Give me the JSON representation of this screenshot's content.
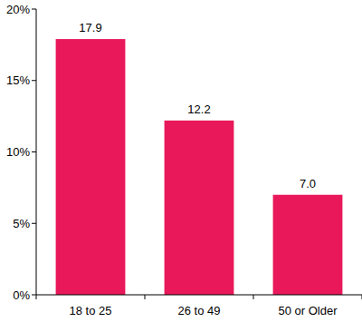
{
  "chart_data": {
    "type": "bar",
    "categories": [
      "18 to 25",
      "26 to 49",
      "50 or Older"
    ],
    "values": [
      17.9,
      12.2,
      7.0
    ],
    "value_labels": [
      "17.9",
      "12.2",
      "7.0"
    ],
    "color": "#e8185a",
    "ylim": [
      0,
      20
    ],
    "yticks": [
      {
        "value": 0,
        "label": "0%"
      },
      {
        "value": 5,
        "label": "5%"
      },
      {
        "value": 10,
        "label": "10%"
      },
      {
        "value": 15,
        "label": "15%"
      },
      {
        "value": 20,
        "label": "20%"
      }
    ],
    "data_labels": true,
    "grid": false
  }
}
